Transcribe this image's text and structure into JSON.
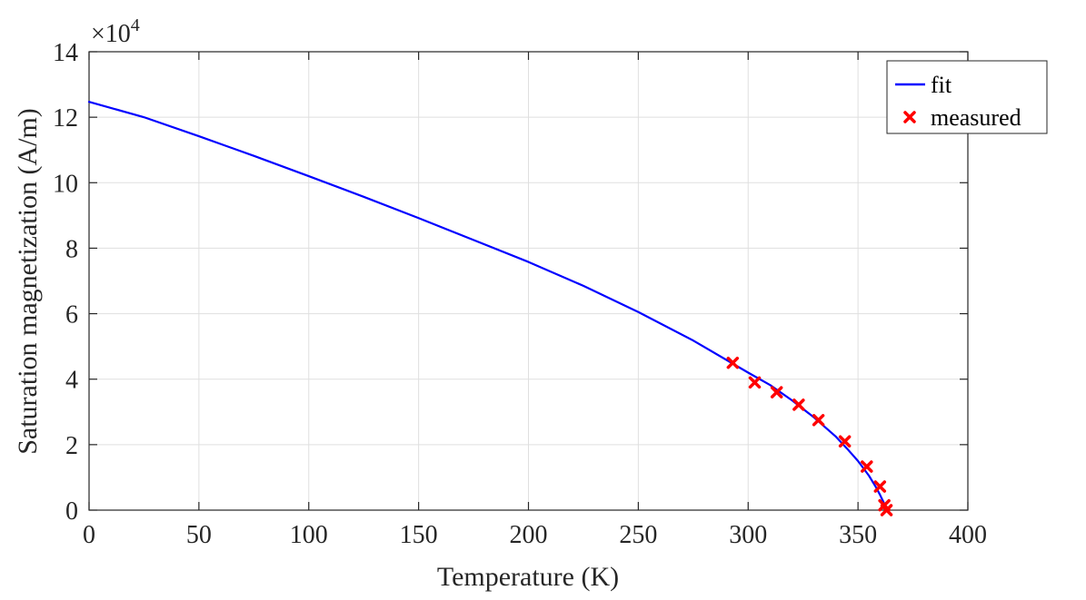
{
  "chart_data": {
    "type": "line",
    "title": "",
    "xlabel": "Temperature (K)",
    "ylabel": "Saturation magnetization (A/m)",
    "y_exponent_label": "×10",
    "y_exponent_power": "4",
    "xlim": [
      0,
      400
    ],
    "ylim": [
      0,
      14
    ],
    "xticks": [
      0,
      50,
      100,
      150,
      200,
      250,
      300,
      350,
      400
    ],
    "yticks": [
      0,
      2,
      4,
      6,
      8,
      10,
      12,
      14
    ],
    "xtick_labels": [
      "0",
      "50",
      "100",
      "150",
      "200",
      "250",
      "300",
      "350",
      "400"
    ],
    "ytick_labels": [
      "0",
      "2",
      "4",
      "6",
      "8",
      "10",
      "12",
      "14"
    ],
    "grid": true,
    "legend_position": "top-right",
    "series": [
      {
        "name": "fit",
        "kind": "line",
        "color": "#0000ff",
        "x": [
          0,
          25,
          50,
          75,
          100,
          125,
          150,
          175,
          200,
          225,
          250,
          275,
          300,
          310,
          320,
          330,
          340,
          345,
          350,
          355,
          358,
          360,
          361.5,
          362.5,
          363
        ],
        "y": [
          12.47,
          12.0,
          11.42,
          10.82,
          10.2,
          9.57,
          8.92,
          8.25,
          7.58,
          6.85,
          6.05,
          5.18,
          4.2,
          3.82,
          3.35,
          2.83,
          2.24,
          1.88,
          1.5,
          1.05,
          0.72,
          0.47,
          0.26,
          0.1,
          0
        ]
      },
      {
        "name": "measured",
        "kind": "scatter",
        "marker": "x",
        "color": "#ff0000",
        "x": [
          293,
          303,
          313,
          323,
          332,
          344,
          354,
          360,
          362,
          363
        ],
        "y": [
          4.5,
          3.9,
          3.6,
          3.22,
          2.75,
          2.1,
          1.33,
          0.72,
          0.15,
          0
        ]
      }
    ]
  }
}
